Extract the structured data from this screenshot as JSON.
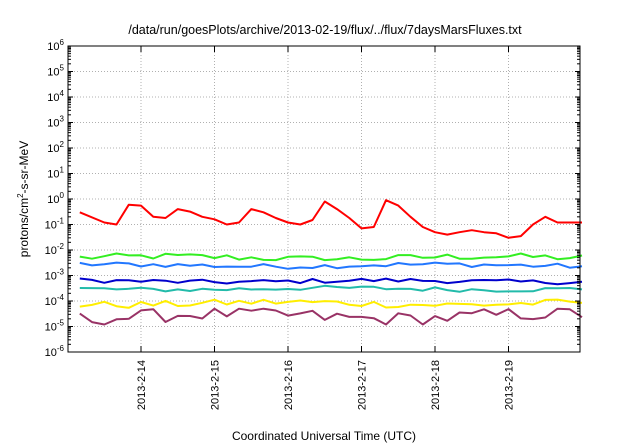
{
  "chart_data": {
    "type": "line",
    "title": "/data/run/goesPlots/archive/2013-02-19/flux/../flux/7daysMarsFluxes.txt",
    "xlabel": "Coordinated Universal Time (UTC)",
    "ylabel_parts": [
      "protons/cm",
      "2",
      "-s-sr-MeV"
    ],
    "yscale": "log",
    "ylim": [
      1e-06,
      1000000.0
    ],
    "ytick_exponents": [
      "-6",
      "-5",
      "-4",
      "-3",
      "-2",
      "-1",
      "0",
      "1",
      "2",
      "3",
      "4",
      "5",
      "6"
    ],
    "ytick_base": "10",
    "xlim": [
      "2013-02-13 04:00",
      "2013-02-20 00:00"
    ],
    "xtick_labels": [
      "2013-2-14",
      "2013-2-15",
      "2013-2-16",
      "2013-2-17",
      "2013-2-18",
      "2013-2-19"
    ],
    "grid": true,
    "series": [
      {
        "color": "#ff0000",
        "x_hours_from_start": [
          0,
          8,
          12,
          16,
          20,
          24,
          28,
          32,
          36,
          40,
          44,
          48,
          52,
          56,
          60,
          64,
          68,
          72,
          76,
          80,
          84,
          88,
          92,
          96,
          100,
          104,
          108,
          112,
          116,
          120,
          124,
          128,
          132,
          136,
          140,
          144,
          148,
          152,
          156,
          160,
          164
        ],
        "values": [
          0.3,
          0.12,
          0.1,
          0.6,
          0.55,
          0.2,
          0.18,
          0.4,
          0.32,
          0.2,
          0.16,
          0.1,
          0.12,
          0.4,
          0.3,
          0.18,
          0.12,
          0.1,
          0.15,
          0.8,
          0.4,
          0.18,
          0.07,
          0.08,
          0.9,
          0.55,
          0.2,
          0.08,
          0.05,
          0.04,
          0.05,
          0.06,
          0.05,
          0.045,
          0.03,
          0.035,
          0.1,
          0.2,
          0.12,
          0.12,
          0.12
        ]
      },
      {
        "color": "#33ee22",
        "values_range": [
          0.004,
          0.009
        ],
        "typical": 0.005
      },
      {
        "color": "#2277ff",
        "values_range": [
          0.0018,
          0.0035
        ],
        "typical": 0.0025
      },
      {
        "color": "#0000cc",
        "values_range": [
          0.0004,
          0.0008
        ],
        "typical": 0.0006
      },
      {
        "color": "#22bbaa",
        "values_range": [
          0.00022,
          0.0004
        ],
        "typical": 0.0003
      },
      {
        "color": "#ffee00",
        "values_range": [
          5e-05,
          0.00012
        ],
        "typical": 8e-05
      },
      {
        "color": "#993366",
        "values_range": [
          1.2e-05,
          5e-05
        ],
        "typical": 2.5e-05
      }
    ]
  }
}
